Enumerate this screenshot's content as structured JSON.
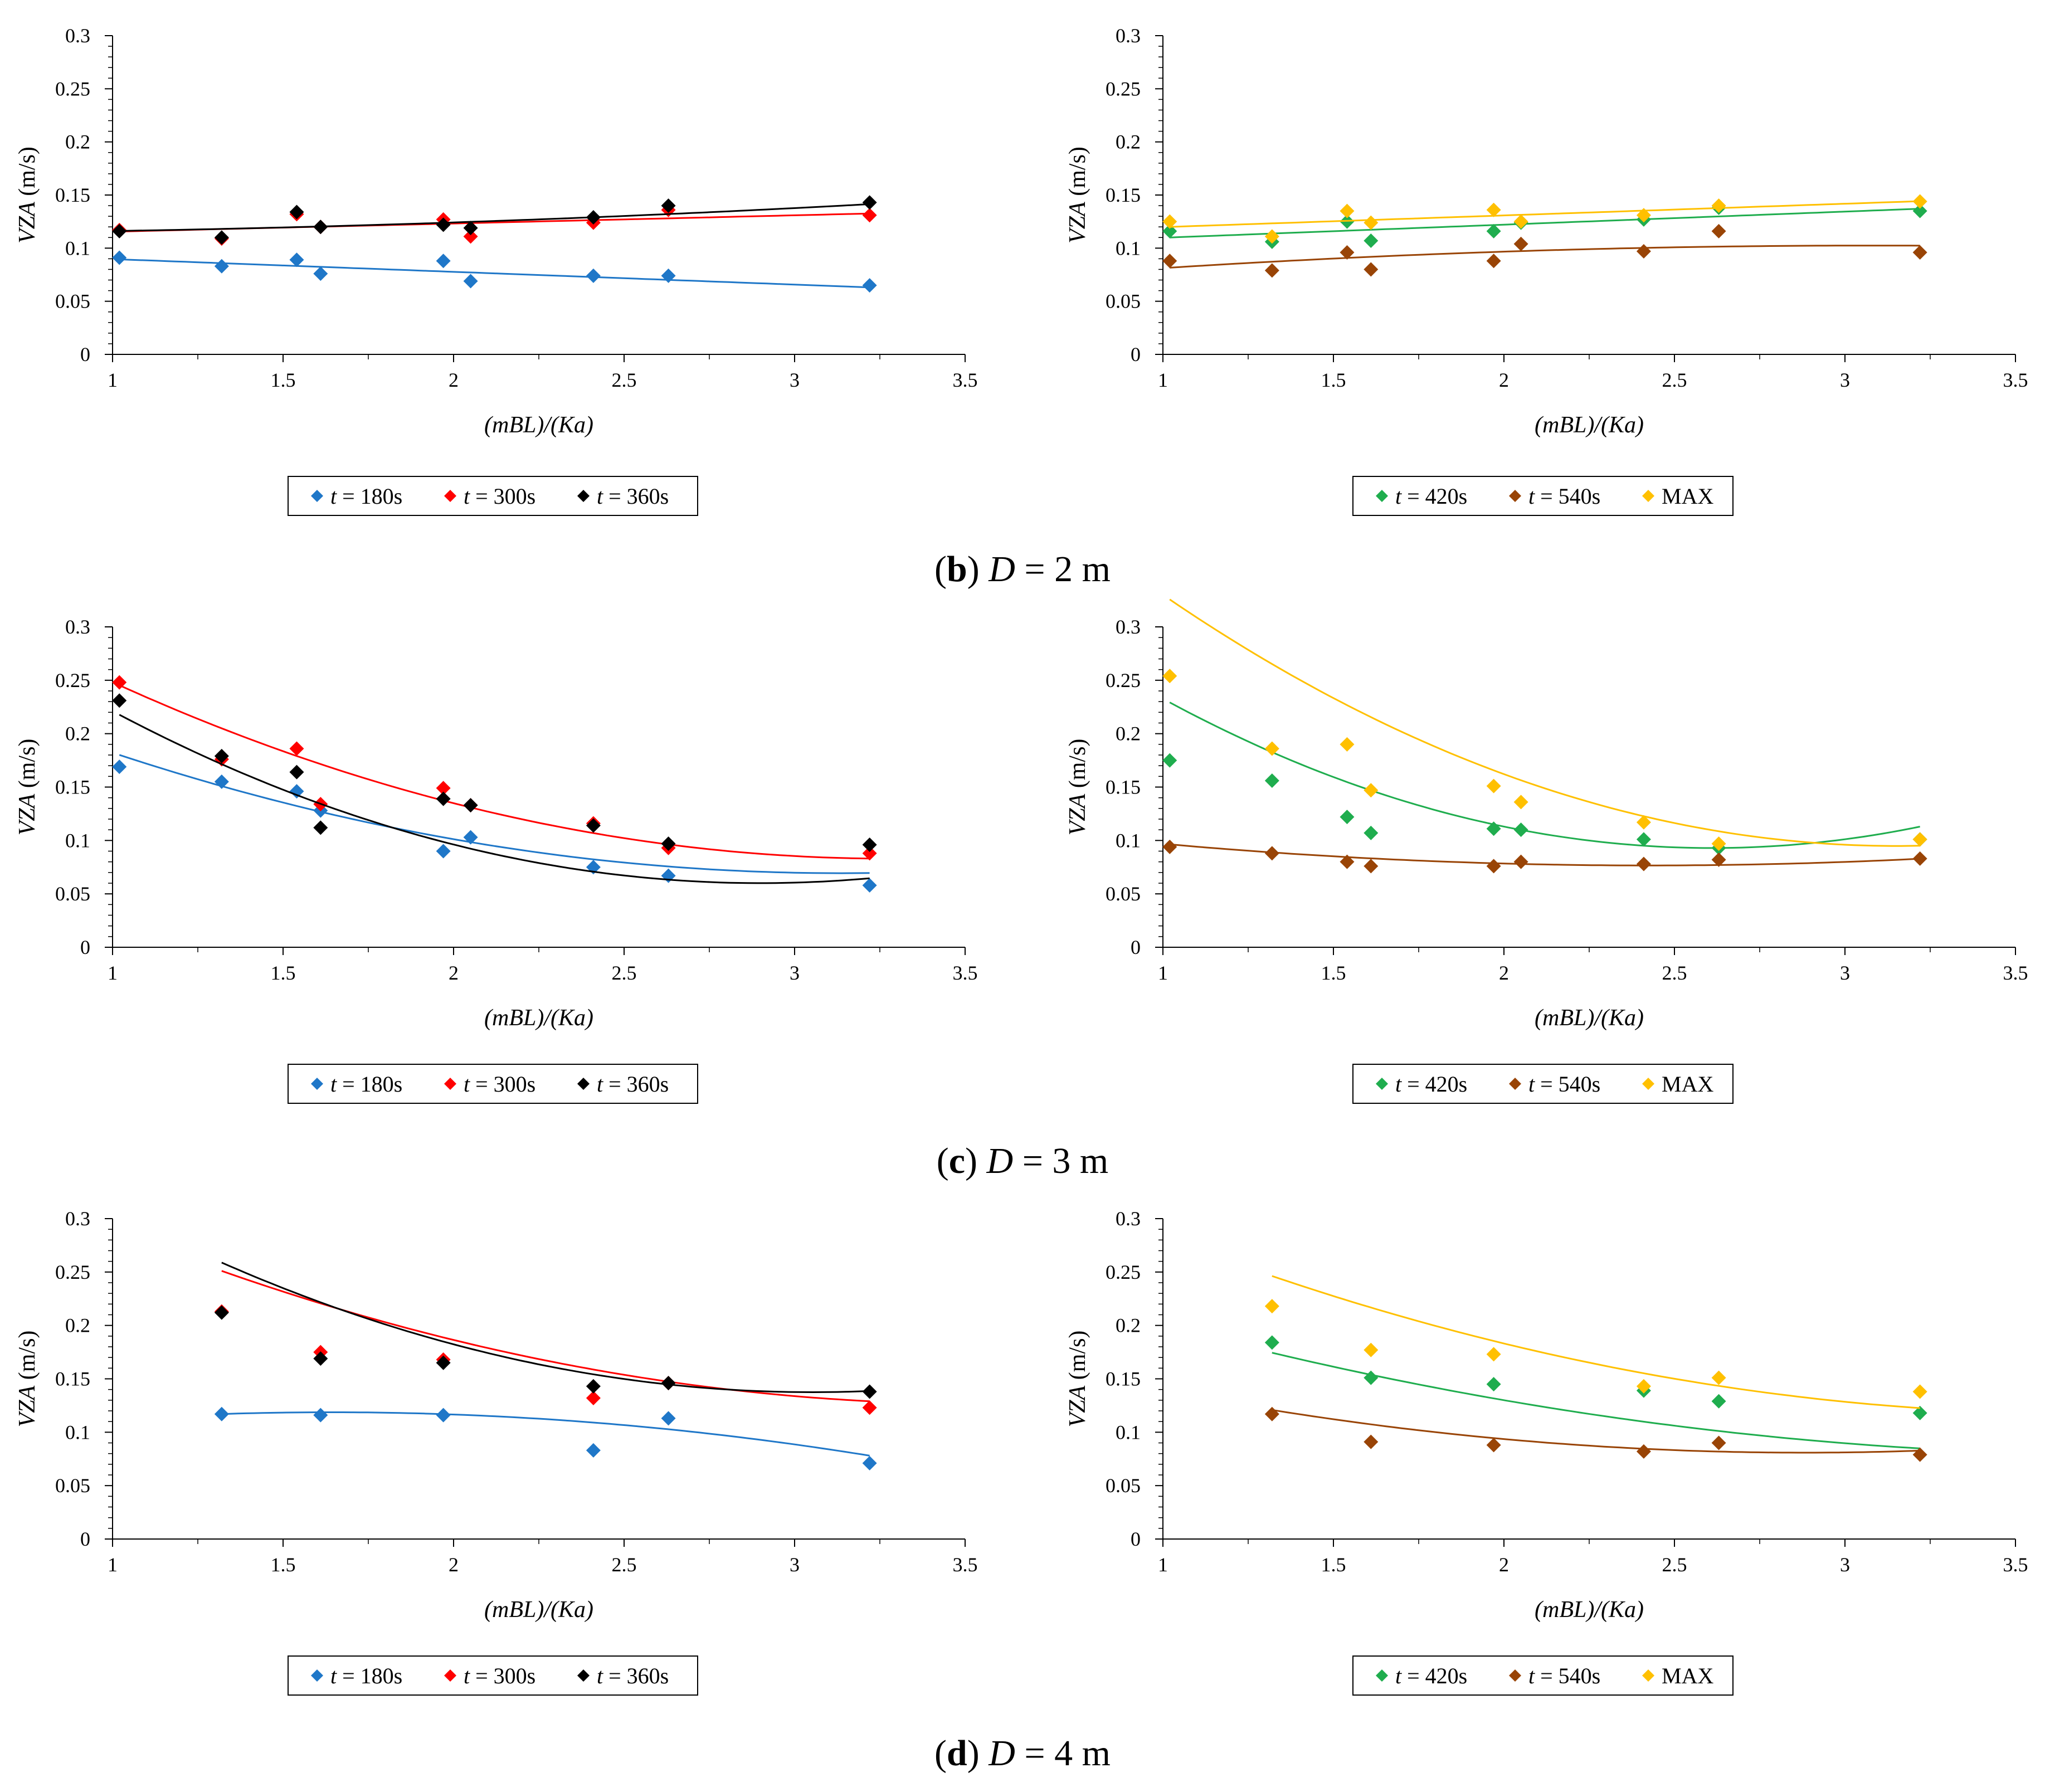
{
  "colors": {
    "t180": "#1f77c8",
    "t300": "#ff0000",
    "t360": "#000000",
    "t420": "#1fad4e",
    "t540": "#994406",
    "max": "#ffc000",
    "axis": "#000000",
    "background": "#ffffff"
  },
  "legend_left": [
    {
      "key": "t180",
      "italic": "t",
      "text": " = 180s"
    },
    {
      "key": "t300",
      "italic": "t",
      "text": " = 300s"
    },
    {
      "key": "t360",
      "italic": "t",
      "text": " = 360s"
    }
  ],
  "legend_right": [
    {
      "key": "t420",
      "italic": "t",
      "text": " = 420s"
    },
    {
      "key": "t540",
      "italic": "t",
      "text": " = 540s"
    },
    {
      "key": "max",
      "italic": "",
      "text": "MAX"
    }
  ],
  "rows": [
    {
      "caption_letter": "b",
      "caption_var": "D",
      "caption_rest": " = 2 m"
    },
    {
      "caption_letter": "c",
      "caption_var": "D",
      "caption_rest": " = 3 m"
    },
    {
      "caption_letter": "d",
      "caption_var": "D",
      "caption_rest": " = 4 m"
    }
  ],
  "chart_data": [
    {
      "id": "b-left",
      "type": "scatter",
      "title": "",
      "xlabel": "(mBL)/(Ka)",
      "ylabel": "VZA (m/s)",
      "xlim": [
        1,
        3.5
      ],
      "ylim": [
        0,
        0.3
      ],
      "xticks": [
        "1",
        "1.5",
        "2",
        "2.5",
        "3",
        "3.5"
      ],
      "yticks": [
        "0",
        "0.05",
        "0.1",
        "0.15",
        "0.2",
        "0.25",
        "0.3"
      ],
      "series": [
        {
          "name": "t = 180s",
          "key": "t180",
          "x": [
            1.02,
            1.32,
            1.54,
            1.61,
            1.97,
            2.05,
            2.41,
            2.63,
            3.22
          ],
          "y": [
            0.091,
            0.083,
            0.089,
            0.076,
            0.088,
            0.069,
            0.074,
            0.074,
            0.065
          ],
          "trend": [
            0.0,
            -0.012,
            0.1017
          ]
        },
        {
          "name": "t = 300s",
          "key": "t300",
          "x": [
            1.02,
            1.32,
            1.54,
            1.61,
            1.97,
            2.05,
            2.41,
            2.63,
            3.22
          ],
          "y": [
            0.117,
            0.109,
            0.132,
            0.12,
            0.127,
            0.111,
            0.124,
            0.136,
            0.131
          ],
          "trend": [
            0.0,
            0.0077,
            0.1078
          ]
        },
        {
          "name": "t = 360s",
          "key": "t360",
          "x": [
            1.02,
            1.32,
            1.54,
            1.61,
            1.97,
            2.05,
            2.41,
            2.63,
            3.22
          ],
          "y": [
            0.116,
            0.11,
            0.134,
            0.12,
            0.122,
            0.119,
            0.129,
            0.14,
            0.143
          ],
          "trend": [
            0.0027,
            0.0,
            0.1134
          ]
        }
      ]
    },
    {
      "id": "b-right",
      "type": "scatter",
      "title": "",
      "xlabel": "(mBL)/(Ka)",
      "ylabel": "VZA (m/s)",
      "xlim": [
        1,
        3.5
      ],
      "ylim": [
        0,
        0.3
      ],
      "xticks": [
        "1",
        "1.5",
        "2",
        "2.5",
        "3",
        "3.5"
      ],
      "yticks": [
        "0",
        "0.05",
        "0.1",
        "0.15",
        "0.2",
        "0.25",
        "0.3"
      ],
      "series": [
        {
          "name": "t = 420s",
          "key": "t420",
          "x": [
            1.02,
            1.32,
            1.54,
            1.61,
            1.97,
            2.05,
            2.41,
            2.63,
            3.22
          ],
          "y": [
            0.116,
            0.106,
            0.125,
            0.107,
            0.116,
            0.124,
            0.127,
            0.138,
            0.135
          ],
          "trend": [
            0.0,
            0.0123,
            0.0975
          ]
        },
        {
          "name": "t = 540s",
          "key": "t540",
          "x": [
            1.02,
            1.32,
            1.54,
            1.61,
            1.97,
            2.05,
            2.41,
            2.63,
            3.22
          ],
          "y": [
            0.088,
            0.079,
            0.096,
            0.08,
            0.088,
            0.104,
            0.097,
            0.116,
            0.096
          ],
          "trend": [
            -0.0049,
            0.0302,
            0.0559
          ]
        },
        {
          "name": "MAX",
          "key": "max",
          "x": [
            1.02,
            1.32,
            1.54,
            1.61,
            1.97,
            2.05,
            2.41,
            2.63,
            3.22
          ],
          "y": [
            0.125,
            0.111,
            0.135,
            0.124,
            0.136,
            0.125,
            0.131,
            0.14,
            0.144
          ],
          "trend": [
            0.0,
            0.011,
            0.1088
          ]
        }
      ]
    },
    {
      "id": "c-left",
      "type": "scatter",
      "title": "",
      "xlabel": "(mBL)/(Ka)",
      "ylabel": "VZA (m/s)",
      "xlim": [
        1,
        3.5
      ],
      "ylim": [
        0,
        0.3
      ],
      "xticks": [
        "1",
        "1.5",
        "2",
        "2.5",
        "3",
        "3.5"
      ],
      "yticks": [
        "0",
        "0.05",
        "0.1",
        "0.15",
        "0.2",
        "0.25",
        "0.3"
      ],
      "series": [
        {
          "name": "t = 180s",
          "key": "t180",
          "x": [
            1.02,
            1.32,
            1.54,
            1.61,
            1.97,
            2.05,
            2.41,
            2.63,
            3.22
          ],
          "y": [
            0.169,
            0.155,
            0.146,
            0.128,
            0.09,
            0.103,
            0.075,
            0.067,
            0.058
          ],
          "trend": [
            0.0248,
            -0.1554,
            0.3128
          ]
        },
        {
          "name": "t = 300s",
          "key": "t300",
          "x": [
            1.02,
            1.32,
            1.54,
            1.61,
            1.97,
            2.05,
            2.41,
            2.63,
            3.22
          ],
          "y": [
            0.248,
            0.176,
            0.186,
            0.134,
            0.149,
            0.133,
            0.116,
            0.093,
            0.088
          ],
          "trend": [
            0.0319,
            -0.209,
            0.4253
          ]
        },
        {
          "name": "t = 360s",
          "key": "t360",
          "x": [
            1.02,
            1.32,
            1.54,
            1.61,
            1.97,
            2.05,
            2.41,
            2.63,
            3.22
          ],
          "y": [
            0.231,
            0.179,
            0.164,
            0.112,
            0.139,
            0.133,
            0.114,
            0.097,
            0.096
          ],
          "trend": [
            0.0446,
            -0.2587,
            0.4352
          ]
        }
      ]
    },
    {
      "id": "c-right",
      "type": "scatter",
      "title": "",
      "xlabel": "(mBL)/(Ka)",
      "ylabel": "VZA (m/s)",
      "xlim": [
        1,
        3.5
      ],
      "ylim": [
        0,
        0.3
      ],
      "xticks": [
        "1",
        "1.5",
        "2",
        "2.5",
        "3",
        "3.5"
      ],
      "yticks": [
        "0",
        "0.05",
        "0.1",
        "0.15",
        "0.2",
        "0.25",
        "0.3"
      ],
      "series": [
        {
          "name": "t = 420s",
          "key": "t420",
          "x": [
            1.02,
            1.32,
            1.54,
            1.61,
            1.97,
            2.05,
            2.41,
            2.63,
            3.22
          ],
          "y": [
            0.175,
            0.156,
            0.122,
            0.107,
            0.111,
            0.11,
            0.101,
            0.093,
            0.101
          ],
          "trend": [
            0.0539,
            -0.2814,
            0.4602
          ]
        },
        {
          "name": "t = 540s",
          "key": "t540",
          "x": [
            1.02,
            1.32,
            1.54,
            1.61,
            1.97,
            2.05,
            2.41,
            2.63,
            3.22
          ],
          "y": [
            0.094,
            0.088,
            0.08,
            0.076,
            0.076,
            0.08,
            0.078,
            0.082,
            0.083
          ],
          "trend": [
            0.01,
            -0.0485,
            0.1354
          ]
        },
        {
          "name": "MAX",
          "key": "max",
          "x": [
            1.02,
            1.32,
            1.54,
            1.61,
            1.97,
            2.05,
            2.41,
            2.63,
            3.22
          ],
          "y": [
            0.254,
            0.186,
            0.19,
            0.147,
            0.151,
            0.136,
            0.117,
            0.097,
            0.101
          ],
          "trend": [
            0.0509,
            -0.3206,
            0.5997
          ]
        }
      ]
    },
    {
      "id": "d-left",
      "type": "scatter",
      "title": "",
      "xlabel": "(mBL)/(Ka)",
      "ylabel": "VZA (m/s)",
      "xlim": [
        1,
        3.5
      ],
      "ylim": [
        0,
        0.3
      ],
      "xticks": [
        "1",
        "1.5",
        "2",
        "2.5",
        "3",
        "3.5"
      ],
      "yticks": [
        "0",
        "0.05",
        "0.1",
        "0.15",
        "0.2",
        "0.25",
        "0.3"
      ],
      "series": [
        {
          "name": "t = 180s",
          "key": "t180",
          "x": [
            1.32,
            1.61,
            1.97,
            2.41,
            2.63,
            3.22
          ],
          "y": [
            0.117,
            0.116,
            0.116,
            0.083,
            0.113,
            0.071
          ],
          "trend": [
            -0.0163,
            0.0535,
            0.0748
          ]
        },
        {
          "name": "t = 300s",
          "key": "t300",
          "x": [
            1.32,
            1.61,
            1.97,
            2.41,
            2.63,
            3.22
          ],
          "y": [
            0.213,
            0.175,
            0.168,
            0.132,
            0.146,
            0.123
          ],
          "trend": [
            0.0253,
            -0.1791,
            0.4434
          ]
        },
        {
          "name": "t = 360s",
          "key": "t360",
          "x": [
            1.32,
            1.61,
            1.97,
            2.41,
            2.63,
            3.22
          ],
          "y": [
            0.212,
            0.169,
            0.165,
            0.143,
            0.146,
            0.138
          ],
          "trend": [
            0.0404,
            -0.2467,
            0.5141
          ]
        }
      ]
    },
    {
      "id": "d-right",
      "type": "scatter",
      "title": "",
      "xlabel": "(mBL)/(Ka)",
      "ylabel": "VZA (m/s)",
      "xlim": [
        1,
        3.5
      ],
      "ylim": [
        0,
        0.3
      ],
      "xticks": [
        "1",
        "1.5",
        "2",
        "2.5",
        "3",
        "3.5"
      ],
      "yticks": [
        "0",
        "0.05",
        "0.1",
        "0.15",
        "0.2",
        "0.25",
        "0.3"
      ],
      "series": [
        {
          "name": "t = 420s",
          "key": "t420",
          "x": [
            1.32,
            1.61,
            1.97,
            2.41,
            2.63,
            3.22
          ],
          "y": [
            0.184,
            0.151,
            0.145,
            0.139,
            0.129,
            0.118
          ],
          "trend": [
            0.0149,
            -0.1148,
            0.3
          ]
        },
        {
          "name": "t = 540s",
          "key": "t540",
          "x": [
            1.32,
            1.61,
            1.97,
            2.41,
            2.63,
            3.22
          ],
          "y": [
            0.117,
            0.091,
            0.088,
            0.082,
            0.09,
            0.079
          ],
          "trend": [
            0.0164,
            -0.0945,
            0.217
          ]
        },
        {
          "name": "MAX",
          "key": "max",
          "x": [
            1.32,
            1.61,
            1.97,
            2.41,
            2.63,
            3.22
          ],
          "y": [
            0.218,
            0.177,
            0.173,
            0.143,
            0.151,
            0.138
          ],
          "trend": [
            0.0228,
            -0.1686,
            0.4291
          ]
        }
      ]
    }
  ]
}
